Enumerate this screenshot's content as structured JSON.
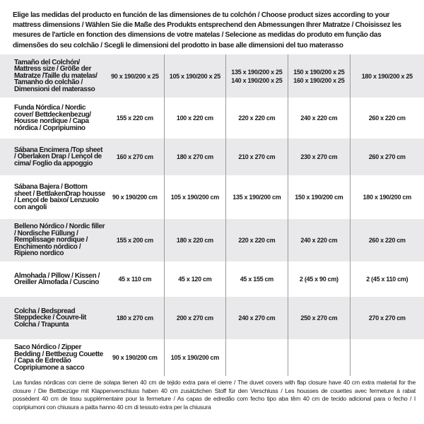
{
  "intro": "Elige las medidas del producto en función de las dimensiones de tu colchón / Choose product sizes according to your mattress dimensions / Wählen Sie die Maße des Produkts entsprechend den Abmessungen Ihrer Matratze / Choisissez les mesures de l'article en fonction des dimensions de votre matelas / Selecione as medidas do produto em função das dimensões do seu colchão / Scegli le dimensioni del prodotto in base alle dimensioni del tuo materasso",
  "rows": [
    {
      "label": "Tamaño del Colchón/ Mattress size / Größe der Matratze /Taille du matelas/ Tamanho do colchão / Dimensioni del materasso",
      "values": [
        "90 x 190/200 x 25",
        "105 x 190/200 x 25",
        "135 x 190/200 x 25\n140 x 190/200 x 25",
        "150 x 190/200 x 25\n160 x 190/200 x 25",
        "180 x 190/200 x 25"
      ]
    },
    {
      "label": "Funda Nórdica /  Nordic cover/ Bettdeckenbezug/ Housse nordique  / Capa nórdica / Copripiumino",
      "values": [
        "155 x 220 cm",
        "100 x 220 cm",
        "220 x 220 cm",
        "240 x 220 cm",
        "260 x 220 cm"
      ]
    },
    {
      "label": "Sábana Encimera /Top sheet / Oberlaken Drap / Lençol de cima/ Foglio da appoggio",
      "values": [
        "160 x 270 cm",
        "180 x 270 cm",
        "210 x 270 cm",
        "230 x 270 cm",
        "260 x 270 cm"
      ]
    },
    {
      "label": "Sábana Bajera / Bottom sheet / BettlakenDrap housse / Lençol de baixo/ Lenzuolo con angoli",
      "values": [
        "90 x 190/200 cm",
        "105 x 190/200 cm",
        "135 x 190/200 cm",
        "150 x 190/200 cm",
        "180 x 190/200 cm"
      ]
    },
    {
      "label": "Belleno Nórdico / Nordic filler / Nordische Füllung / Remplissage nordique / Enchimento nórdico / Ripieno nordico",
      "values": [
        "155 x 200 cm",
        "180 x 220 cm",
        "220 x 220 cm",
        "240 x 220 cm",
        "260 x 220 cm"
      ]
    },
    {
      "label": "Almohada  / Pillow / Kissen / Oreiller Almofada / Cuscino",
      "values": [
        "45 x 110 cm",
        "45 x 120 cm",
        "45 x 155 cm",
        "2 (45 x 90 cm)",
        "2 (45 x 110 cm)"
      ]
    },
    {
      "label": "Colcha / Bedspread Steppdecke / Couvre-lit Colcha / Trapunta",
      "values": [
        "180 x 270 cm",
        "200 x 270 cm",
        "240 x 270 cm",
        "250 x 270 cm",
        "270 x 270 cm"
      ]
    },
    {
      "label": "Saco Nórdico / Zipper Bedding / Bettbezug Couette  / Capa de Edredão Copripiumone a sacco",
      "values": [
        "90 x 190/200 cm",
        "105 x 190/200 cm",
        "",
        "",
        ""
      ]
    }
  ],
  "note": "Las fundas nórdicas con cierre de solapa tienen 40 cm de tejido extra para el cierre  / The duvet covers with flap closure have 40 cm extra material for the closure / Die Bettbezüge mit Klappenverschluss haben 40 cm zusätzlichen Stoff für den Verschluss / Les housses de couettes avec fermeture à rabat possèdent 40 cm de tissu supplémentaire pour la fermeture / As capas de edredão com fecho tipo aba têm 40 cm de tecido adicional para o fecho / I copripiumoni con chiusura a patta hanno 40 cm di tessuto extra per la chiusura",
  "colors": {
    "stripe": "#e9e9ec",
    "divider": "#9a9a9a",
    "text": "#1a1a1a"
  }
}
